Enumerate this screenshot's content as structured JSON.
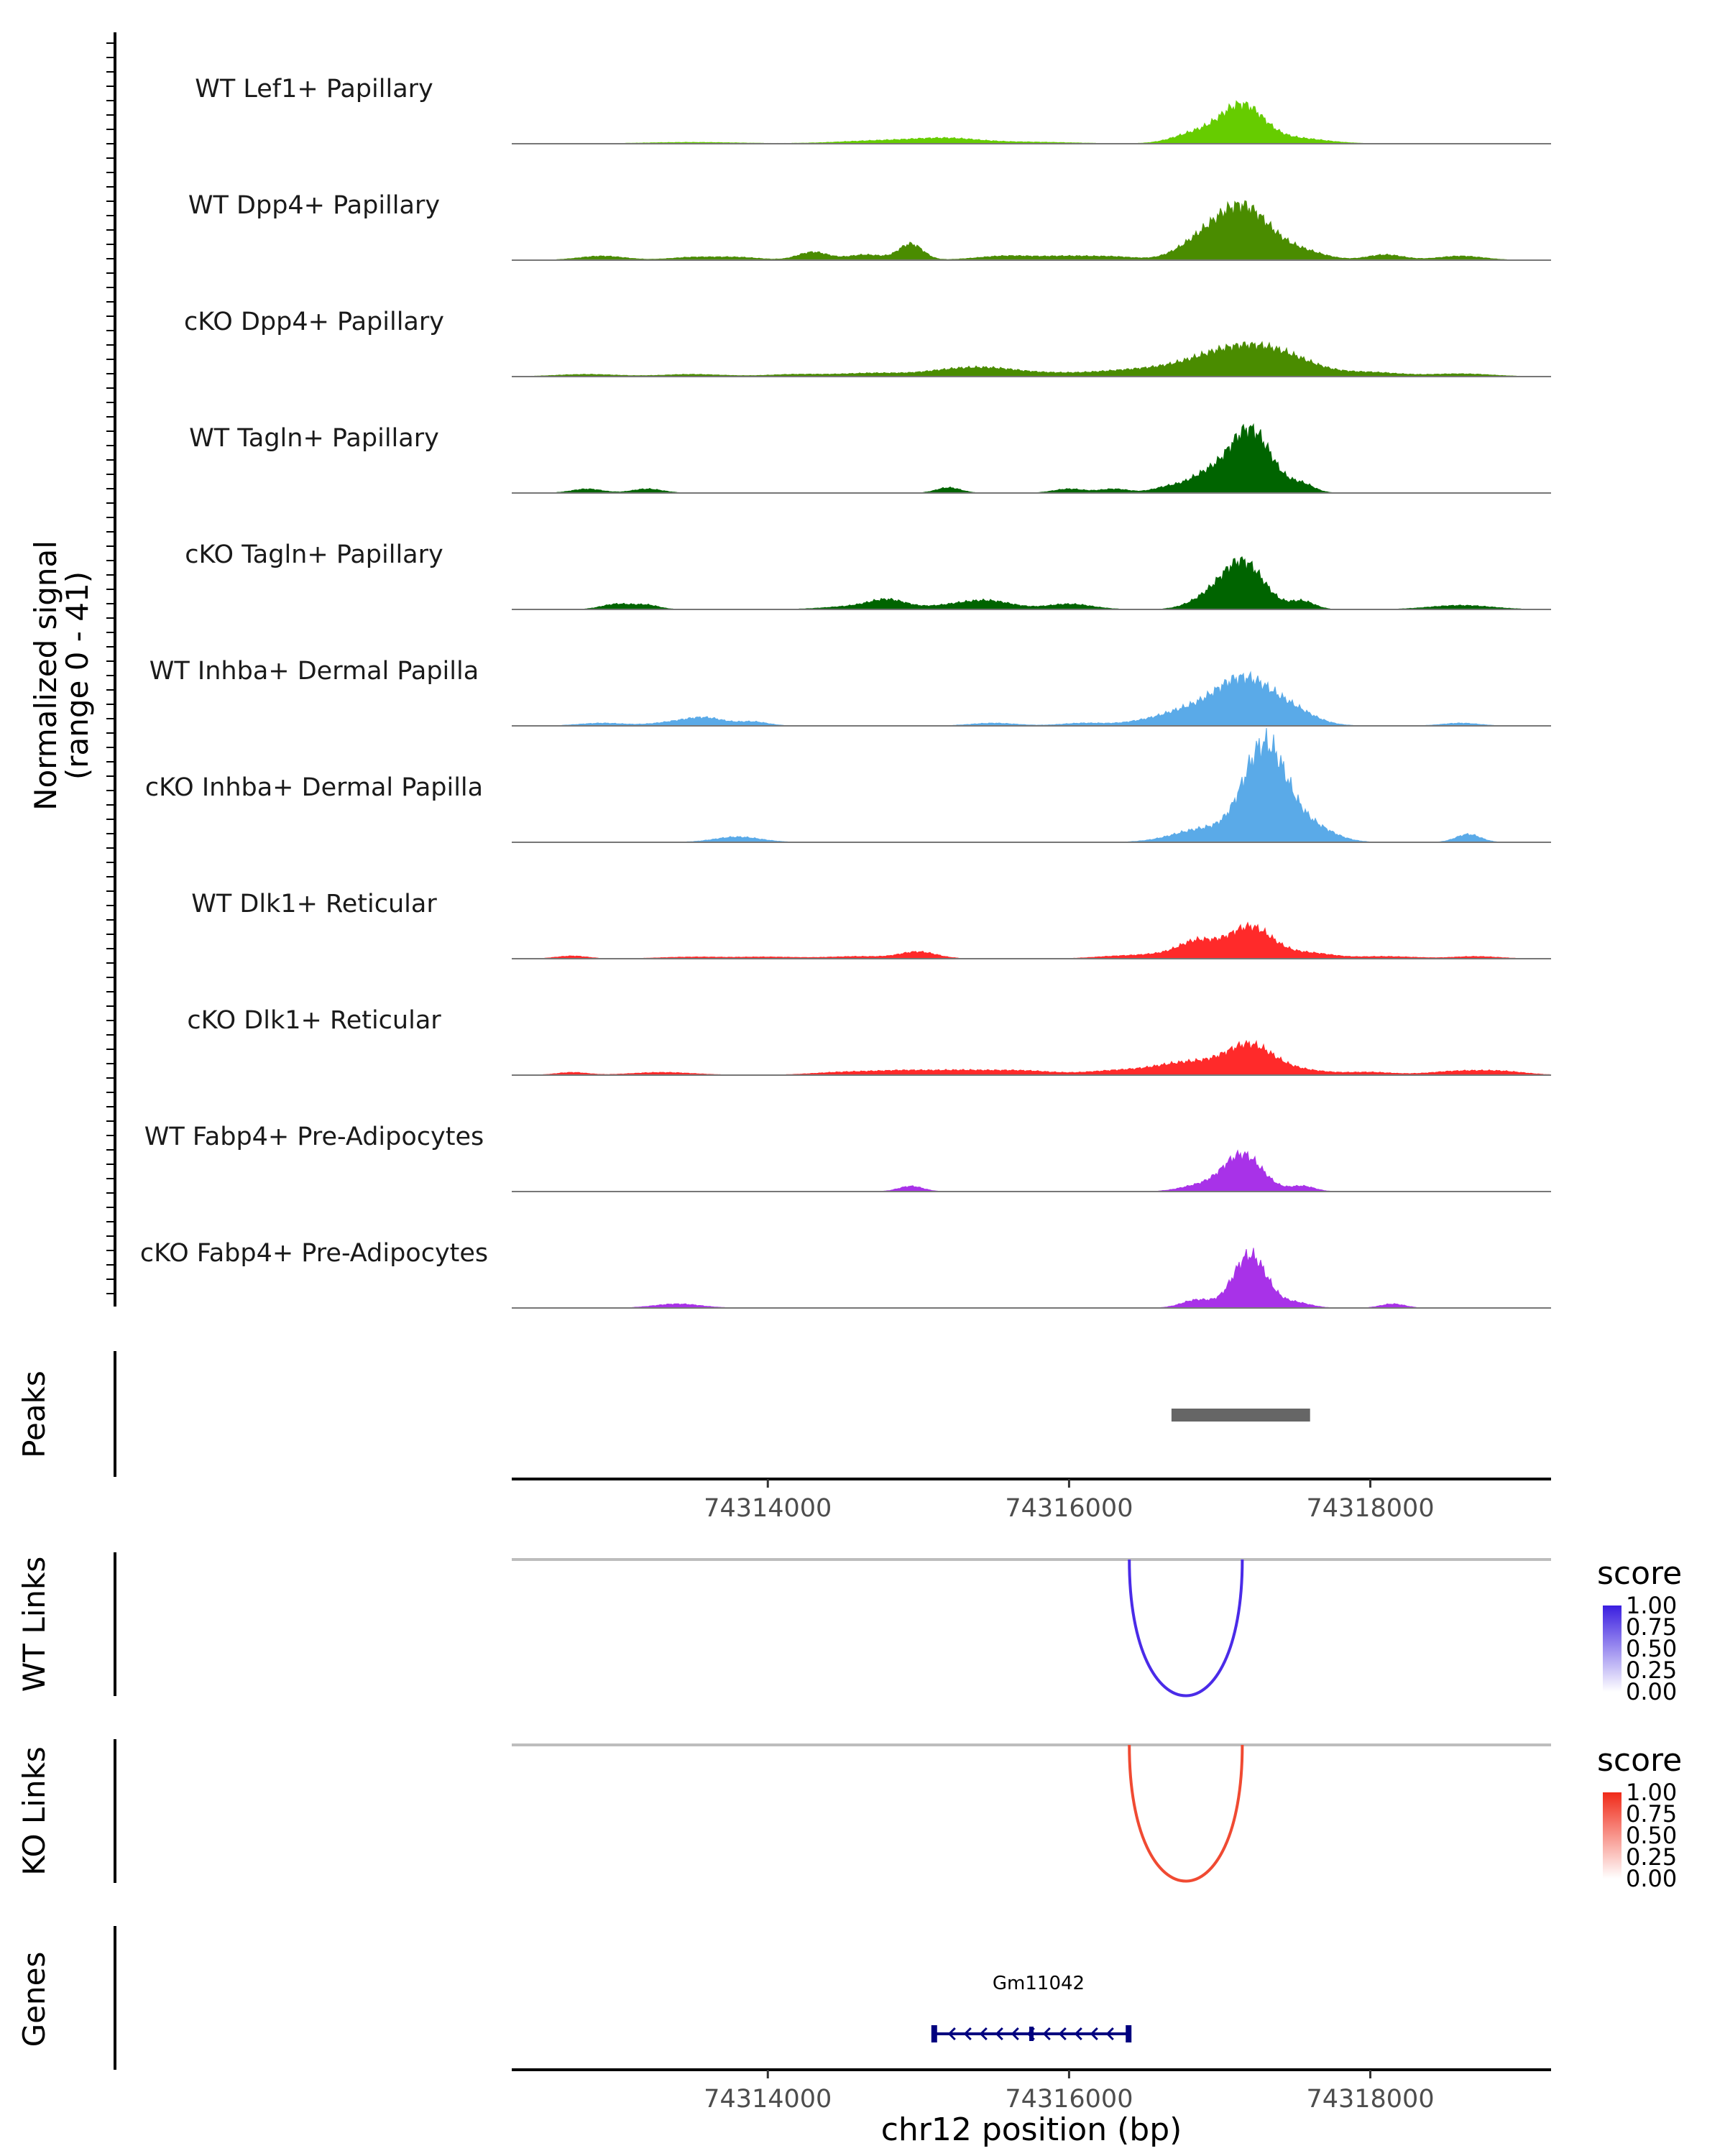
{
  "chart_data": {
    "type": "area",
    "title": "",
    "region": {
      "chrom": "chr12",
      "start": 74312300,
      "end": 74319200
    },
    "xlabel": "chr12 position (bp)",
    "x_ticks": [
      74314000,
      74316000,
      74318000
    ],
    "x_tick_labels": [
      "74314000",
      "74316000",
      "74318000"
    ],
    "coverage": {
      "ylabel_line1": "Normalized signal",
      "ylabel_line2": "(range 0 - 41)",
      "ylim": [
        0,
        41
      ],
      "tracks": [
        {
          "name": "WT Lef1+ Papillary",
          "color": "#66cc00",
          "peaks": [
            [
              74313500,
              0.5,
              300
            ],
            [
              74314800,
              1.2,
              300
            ],
            [
              74315200,
              1.5,
              200
            ],
            [
              74315700,
              0.6,
              300
            ],
            [
              74316850,
              4,
              150
            ],
            [
              74317150,
              14,
              140
            ],
            [
              74317500,
              2,
              200
            ]
          ]
        },
        {
          "name": "WT Dpp4+ Papillary",
          "color": "#4a8c00",
          "peaks": [
            [
              74312900,
              1.5,
              150
            ],
            [
              74313500,
              1,
              150
            ],
            [
              74313800,
              1,
              150
            ],
            [
              74314300,
              3,
              100
            ],
            [
              74314650,
              2,
              120
            ],
            [
              74314950,
              6,
              80
            ],
            [
              74315600,
              1.6,
              200
            ],
            [
              74316000,
              1.2,
              150
            ],
            [
              74316300,
              1.2,
              150
            ],
            [
              74316850,
              5,
              150
            ],
            [
              74317150,
              20,
              180
            ],
            [
              74317550,
              3,
              150
            ],
            [
              74318100,
              2,
              120
            ],
            [
              74318600,
              1.5,
              150
            ]
          ]
        },
        {
          "name": "cKO Dpp4+ Papillary",
          "color": "#4a8c00",
          "peaks": [
            [
              74312800,
              0.8,
              200
            ],
            [
              74313500,
              0.8,
              200
            ],
            [
              74314200,
              0.8,
              200
            ],
            [
              74314700,
              1.2,
              200
            ],
            [
              74315200,
              2,
              200
            ],
            [
              74315500,
              2.5,
              200
            ],
            [
              74315900,
              1,
              200
            ],
            [
              74316300,
              1.5,
              200
            ],
            [
              74316600,
              2,
              200
            ],
            [
              74316900,
              3,
              200
            ],
            [
              74317200,
              10,
              250
            ],
            [
              74317500,
              3,
              200
            ],
            [
              74318000,
              1.5,
              200
            ],
            [
              74318600,
              1,
              200
            ]
          ]
        },
        {
          "name": "WT Tagln+ Papillary",
          "color": "#006400",
          "peaks": [
            [
              74312800,
              1.5,
              100
            ],
            [
              74313200,
              1.5,
              100
            ],
            [
              74315200,
              2,
              80
            ],
            [
              74316000,
              1.5,
              100
            ],
            [
              74316300,
              1.5,
              100
            ],
            [
              74316650,
              2,
              100
            ],
            [
              74316900,
              6,
              120
            ],
            [
              74317200,
              24,
              140
            ],
            [
              74317550,
              3,
              80
            ]
          ]
        },
        {
          "name": "cKO Tagln+ Papillary",
          "color": "#006400",
          "peaks": [
            [
              74313000,
              2,
              100
            ],
            [
              74313200,
              1.5,
              80
            ],
            [
              74314600,
              1.2,
              200
            ],
            [
              74314800,
              3,
              120
            ],
            [
              74315300,
              2,
              200
            ],
            [
              74315500,
              2,
              150
            ],
            [
              74316000,
              2,
              150
            ],
            [
              74316900,
              3,
              120
            ],
            [
              74317150,
              18,
              140
            ],
            [
              74317550,
              3,
              80
            ],
            [
              74318600,
              1.5,
              200
            ]
          ]
        },
        {
          "name": "WT Inhba+ Dermal Papilla",
          "color": "#5aaae8",
          "peaks": [
            [
              74312900,
              1,
              150
            ],
            [
              74313400,
              1.5,
              150
            ],
            [
              74313600,
              2.5,
              120
            ],
            [
              74313900,
              1.5,
              100
            ],
            [
              74315500,
              1,
              150
            ],
            [
              74316100,
              1,
              150
            ],
            [
              74316500,
              1.5,
              150
            ],
            [
              74316750,
              4,
              150
            ],
            [
              74317150,
              18,
              200
            ],
            [
              74317500,
              4,
              150
            ],
            [
              74318600,
              1,
              120
            ]
          ]
        },
        {
          "name": "cKO Inhba+ Dermal Papilla",
          "color": "#5aaae8",
          "peaks": [
            [
              74313800,
              2,
              150
            ],
            [
              74316900,
              5,
              200
            ],
            [
              74317300,
              36,
              140
            ],
            [
              74317600,
              6,
              150
            ],
            [
              74318650,
              3,
              80
            ]
          ]
        },
        {
          "name": "WT Dlk1+ Reticular",
          "color": "#ff2a2a",
          "peaks": [
            [
              74312700,
              1,
              100
            ],
            [
              74313500,
              0.6,
              200
            ],
            [
              74314000,
              0.6,
              200
            ],
            [
              74314600,
              0.8,
              200
            ],
            [
              74315000,
              2.5,
              120
            ],
            [
              74316300,
              0.8,
              150
            ],
            [
              74316600,
              1.5,
              150
            ],
            [
              74316850,
              6,
              120
            ],
            [
              74317200,
              12,
              150
            ],
            [
              74317600,
              2,
              150
            ],
            [
              74318100,
              0.8,
              200
            ],
            [
              74318700,
              0.8,
              150
            ]
          ]
        },
        {
          "name": "cKO Dlk1+ Reticular",
          "color": "#ff2a2a",
          "peaks": [
            [
              74312700,
              1,
              100
            ],
            [
              74313300,
              1,
              200
            ],
            [
              74314500,
              1,
              200
            ],
            [
              74314900,
              1.5,
              200
            ],
            [
              74315300,
              1.5,
              200
            ],
            [
              74315700,
              1.5,
              200
            ],
            [
              74316300,
              1.5,
              200
            ],
            [
              74316700,
              2.5,
              200
            ],
            [
              74316900,
              3,
              200
            ],
            [
              74317200,
              10,
              150
            ],
            [
              74317500,
              2,
              200
            ],
            [
              74318000,
              1,
              150
            ],
            [
              74318600,
              1.5,
              200
            ],
            [
              74318900,
              1,
              150
            ]
          ]
        },
        {
          "name": "WT Fabp4+ Pre-Adipocytes",
          "color": "#a832e8",
          "peaks": [
            [
              74314950,
              2,
              80
            ],
            [
              74316850,
              2,
              120
            ],
            [
              74317150,
              14,
              130
            ],
            [
              74317550,
              2,
              80
            ]
          ]
        },
        {
          "name": "cKO Fabp4+ Pre-Adipocytes",
          "color": "#a832e8",
          "peaks": [
            [
              74313400,
              1.5,
              150
            ],
            [
              74316850,
              3,
              100
            ],
            [
              74317200,
              20,
              110
            ],
            [
              74317500,
              2,
              100
            ],
            [
              74318150,
              1.5,
              80
            ]
          ]
        }
      ]
    },
    "peaks_track": {
      "label": "Peaks",
      "color": "#666666",
      "ranges": [
        [
          74316680,
          74317600
        ]
      ]
    },
    "links": [
      {
        "label": "WT Links",
        "color": "#4a2be8",
        "start": 74316400,
        "end": 74317150,
        "score": 1.0,
        "legend_title": "score",
        "legend_ticks": [
          "1.00",
          "0.75",
          "0.50",
          "0.25",
          "0.00"
        ],
        "legend_color": "#3a1ee0"
      },
      {
        "label": "KO Links",
        "color": "#f04a32",
        "start": 74316400,
        "end": 74317150,
        "score": 1.0,
        "legend_title": "score",
        "legend_ticks": [
          "1.00",
          "0.75",
          "0.50",
          "0.25",
          "0.00"
        ],
        "legend_color": "#f02a18"
      }
    ],
    "genes": {
      "label": "Genes",
      "color": "#00007f",
      "items": [
        {
          "name": "Gm11042",
          "start": 74315100,
          "end": 74316400,
          "strand": "-"
        }
      ]
    }
  }
}
